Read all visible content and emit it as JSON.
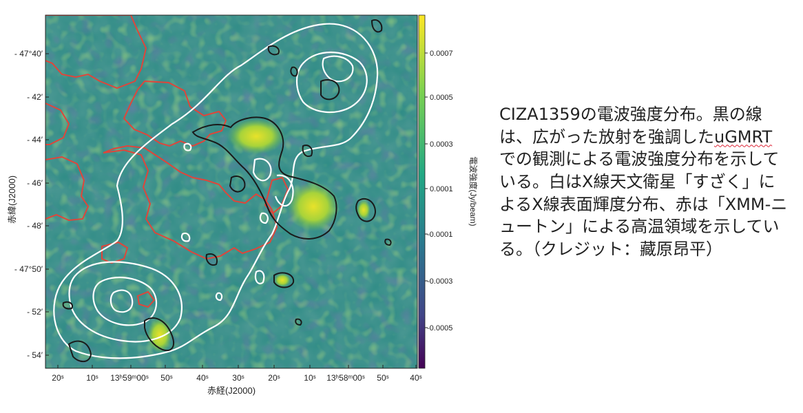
{
  "figure": {
    "x_axis_label": "赤経(J2000)",
    "y_axis_label": "赤緯(J2000)",
    "colorbar_label": "電波強度(Jy/beam)",
    "y_ticks": [
      "- 47°40′",
      "- 42′",
      "- 44′",
      "- 46′",
      "- 48′",
      "- 47°50′",
      "- 52′",
      "- 54′"
    ],
    "x_ticks": [
      "20ˢ",
      "10ˢ",
      "13ʰ59ᵐ00ˢ",
      "50ˢ",
      "40ˢ",
      "30ˢ",
      "20ˢ",
      "10ˢ",
      "13ʰ58ᵐ00ˢ",
      "50ˢ",
      "40ˢ"
    ],
    "colorbar_ticks": [
      "0.0007",
      "0.0005",
      "0.0003",
      "0.0001",
      "-0.0001",
      "-0.0003",
      "-0.0005"
    ],
    "colorbar_range": [
      -0.00065,
      0.00085
    ],
    "contour_colors": {
      "radio": "#1a1a1a",
      "xray": "#ffffff",
      "hot": "#e0453a"
    }
  },
  "caption": {
    "line1_before": "CIZA1359の電波強度分布。黒の線は、広がった放射を強調した",
    "squiggle": "uGMRT",
    "line1_after": "での観測による電波強度分布を示している。白はX線天文衛星「すざく」によるX線表面輝度分布、赤は「XMM-ニュートン」による高温領域を示している。（クレジット：藏原昂平）"
  }
}
